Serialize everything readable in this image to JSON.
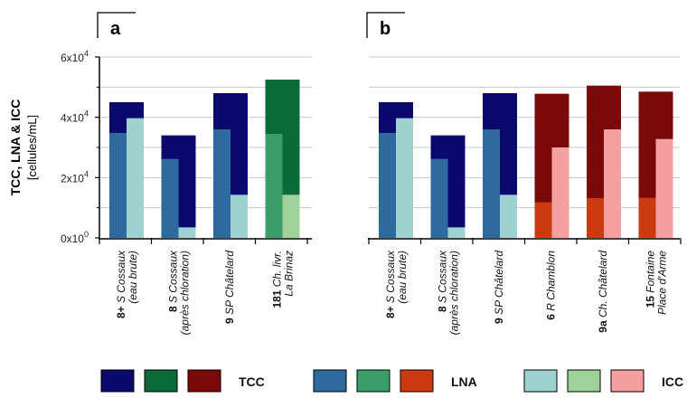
{
  "chart_data": {
    "type": "bar",
    "y_axis": {
      "label_line1": "TCC, LNA & ICC",
      "label_line2": "[cellules/mL]",
      "ylim": [
        0,
        60000
      ],
      "ticks": [
        {
          "value": 0,
          "base": "0x10",
          "exp": "0"
        },
        {
          "value": 20000,
          "base": "2x10",
          "exp": "4"
        },
        {
          "value": 40000,
          "base": "4x10",
          "exp": "4"
        },
        {
          "value": 60000,
          "base": "6x10",
          "exp": "4"
        }
      ],
      "grid": true
    },
    "colors": {
      "tcc_blue": "#0a0a6e",
      "lna_blue": "#2f6a9f",
      "icc_blue": "#9fd1d1",
      "tcc_green": "#0a6b39",
      "lna_green": "#3a9e6a",
      "icc_green": "#9fd19a",
      "tcc_red": "#7a0a0a",
      "lna_red": "#cc3a10",
      "icc_red": "#f5a0a0"
    },
    "panels": [
      {
        "label": "a",
        "categories": [
          {
            "num": "8+",
            "name": "S Cossaux",
            "line2": "(eau brute)",
            "scheme": "blue",
            "tcc": 45000,
            "lna": 34800,
            "icc": 39700
          },
          {
            "num": "8",
            "name": "S Cossaux",
            "line2": "(après chloration)",
            "scheme": "blue",
            "tcc": 34000,
            "lna": 26200,
            "icc": 3500
          },
          {
            "num": "9",
            "name": "SP Châtelard",
            "line2": "",
            "scheme": "blue",
            "tcc": 48000,
            "lna": 36000,
            "icc": 14300
          },
          {
            "num": "181",
            "name": "Ch. livr.",
            "line2": "La Brinaz",
            "scheme": "green",
            "tcc": 52500,
            "lna": 34500,
            "icc": 14300
          }
        ]
      },
      {
        "label": "b",
        "categories": [
          {
            "num": "8+",
            "name": "S Cossaux",
            "line2": "(eau brute)",
            "scheme": "blue",
            "tcc": 45000,
            "lna": 34800,
            "icc": 39700
          },
          {
            "num": "8",
            "name": "S Cossaux",
            "line2": "(après chloration)",
            "scheme": "blue",
            "tcc": 34000,
            "lna": 26200,
            "icc": 3500
          },
          {
            "num": "9",
            "name": "SP Châtelard",
            "line2": "",
            "scheme": "blue",
            "tcc": 48000,
            "lna": 36000,
            "icc": 14300
          },
          {
            "num": "6",
            "name": "R Chamblon",
            "line2": "",
            "scheme": "red",
            "tcc": 47800,
            "lna": 11800,
            "icc": 30000
          },
          {
            "num": "9a",
            "name": "Ch. Châtelard",
            "line2": "",
            "scheme": "red",
            "tcc": 50500,
            "lna": 13200,
            "icc": 36000
          },
          {
            "num": "15",
            "name": "Fontaine",
            "line2": "Place d'Arme",
            "scheme": "red",
            "tcc": 48500,
            "lna": 13300,
            "icc": 32800
          }
        ]
      }
    ],
    "legend": [
      {
        "label": "TCC",
        "colors": [
          "tcc_blue",
          "tcc_green",
          "tcc_red"
        ]
      },
      {
        "label": "LNA",
        "colors": [
          "lna_blue",
          "lna_green",
          "lna_red"
        ]
      },
      {
        "label": "ICC",
        "colors": [
          "icc_blue",
          "icc_green",
          "icc_red"
        ]
      }
    ]
  }
}
